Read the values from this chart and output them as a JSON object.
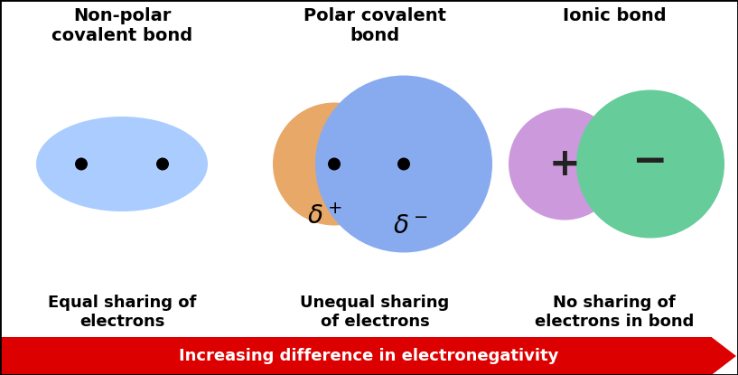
{
  "bg_color": "#ffffff",
  "border_color": "#000000",
  "title": "Increasing difference in electronegativity",
  "arrow_color": "#dd0000",
  "arrow_text_color": "#ffffff",
  "section1_title": "Non-polar\ncovalent bond",
  "section1_subtitle": "Equal sharing of\nelectrons",
  "ellipse_color": "#aaccff",
  "section2_title": "Polar covalent\nbond",
  "section2_subtitle": "Unequal sharing\nof electrons",
  "small_circle_color": "#e8a868",
  "big_circle_color": "#88aaee",
  "section3_title": "Ionic bond",
  "section3_subtitle": "No sharing of\nelectrons in bond",
  "purple_circle_color": "#cc99dd",
  "green_circle_color": "#66cc99",
  "font_size_title": 14,
  "font_size_subtitle": 13,
  "font_size_arrow": 13
}
